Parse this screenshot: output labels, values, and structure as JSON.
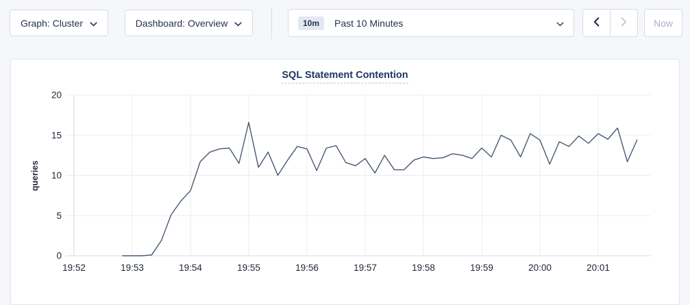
{
  "toolbar": {
    "graph_dropdown": {
      "label": "Graph: Cluster"
    },
    "dashboard_dropdown": {
      "label": "Dashboard: Overview"
    },
    "time_picker": {
      "badge": "10m",
      "label": "Past 10 Minutes"
    },
    "prev_label": "previous time range",
    "next_label": "next time range",
    "now_label": "Now"
  },
  "colors": {
    "title_navy": "#1f3565",
    "control_text": "#26324e",
    "series_line": "#475872",
    "disabled_text": "#a9b2c1"
  },
  "chart_data": {
    "type": "line",
    "title": "SQL Statement Contention",
    "xlabel": "",
    "ylabel": "queries",
    "ylim": [
      0,
      20
    ],
    "yticks": [
      0,
      5,
      10,
      15,
      20
    ],
    "x_tick_labels": [
      "19:52",
      "19:53",
      "19:54",
      "19:55",
      "19:56",
      "19:57",
      "19:58",
      "19:59",
      "20:00",
      "20:01"
    ],
    "grid": true,
    "legend": "none",
    "series": [
      {
        "name": "SQL Statement Contention",
        "color": "#475872",
        "start_time": "19:52:50",
        "interval_seconds": 10,
        "times": [
          "19:52:50",
          "19:53:00",
          "19:53:10",
          "19:53:20",
          "19:53:30",
          "19:53:40",
          "19:53:50",
          "19:54:00",
          "19:54:10",
          "19:54:20",
          "19:54:30",
          "19:54:40",
          "19:54:50",
          "19:55:00",
          "19:55:10",
          "19:55:20",
          "19:55:30",
          "19:55:40",
          "19:55:50",
          "19:56:00",
          "19:56:10",
          "19:56:20",
          "19:56:30",
          "19:56:40",
          "19:56:50",
          "19:57:00",
          "19:57:10",
          "19:57:20",
          "19:57:30",
          "19:57:40",
          "19:57:50",
          "19:58:00",
          "19:58:10",
          "19:58:20",
          "19:58:30",
          "19:58:40",
          "19:58:50",
          "19:59:00",
          "19:59:10",
          "19:59:20",
          "19:59:30",
          "19:59:40",
          "19:59:50",
          "20:00:00",
          "20:00:10",
          "20:00:20",
          "20:00:30",
          "20:00:40",
          "20:00:50",
          "20:01:00",
          "20:01:10",
          "20:01:20",
          "20:01:30",
          "20:01:40"
        ],
        "values": [
          0,
          0,
          0,
          0.1,
          1.9,
          5.1,
          6.8,
          8.1,
          11.7,
          12.9,
          13.3,
          13.4,
          11.5,
          16.6,
          11.0,
          12.9,
          10.0,
          11.9,
          13.6,
          13.3,
          10.6,
          13.4,
          13.7,
          11.6,
          11.2,
          12.1,
          10.3,
          12.5,
          10.7,
          10.7,
          11.9,
          12.3,
          12.1,
          12.2,
          12.7,
          12.5,
          12.1,
          13.4,
          12.3,
          15.0,
          14.4,
          12.3,
          15.2,
          14.4,
          11.4,
          14.2,
          13.6,
          14.9,
          14.0,
          15.2,
          14.5,
          15.9,
          11.7,
          14.4
        ]
      }
    ]
  }
}
